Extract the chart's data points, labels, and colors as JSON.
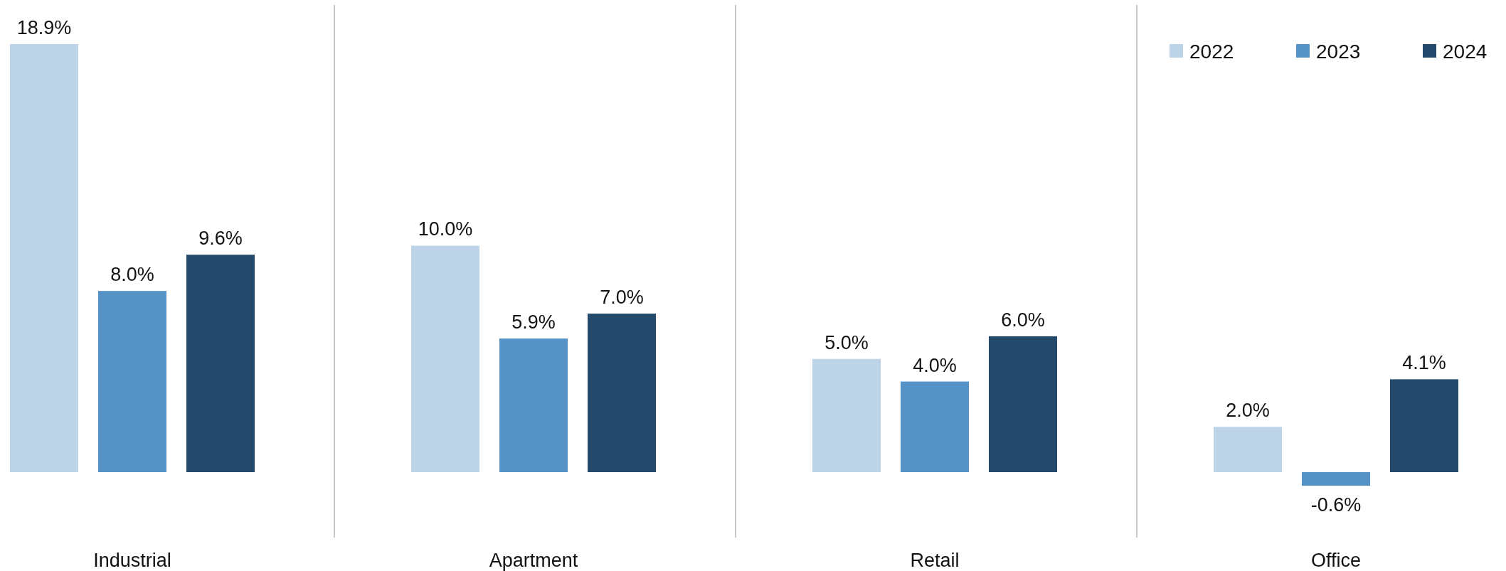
{
  "chart_data": {
    "type": "bar",
    "categories": [
      "Industrial",
      "Apartment",
      "Retail",
      "Office"
    ],
    "legend": "top right",
    "series": [
      {
        "name": "2022",
        "color": "#bdd3e7",
        "values": [
          18.9,
          10.0,
          5.0,
          2.0
        ],
        "value_labels": [
          "18.9%",
          "10.0%",
          "5.0%",
          "2.0%"
        ]
      },
      {
        "name": "2023",
        "color": "#5592c6",
        "values": [
          8.0,
          5.9,
          4.0,
          -0.6
        ],
        "value_labels": [
          "8.0%",
          "5.9%",
          "4.0%",
          "-0.6%"
        ]
      },
      {
        "name": "2024",
        "color": "#244a6b",
        "values": [
          9.6,
          7.0,
          6.0,
          4.1
        ],
        "value_labels": [
          "9.6%",
          "7.0%",
          "6.0%",
          "4.1%"
        ]
      }
    ]
  }
}
